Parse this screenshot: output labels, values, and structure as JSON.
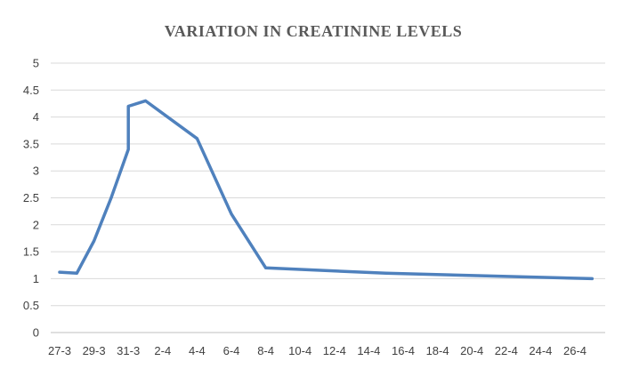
{
  "chart_data": {
    "type": "line",
    "title": "VARIATION IN CREATININE LEVELS",
    "xlabel": "",
    "ylabel": "",
    "ylim": [
      0,
      5
    ],
    "yticks": [
      "0",
      "0.5",
      "1",
      "1.5",
      "2",
      "2.5",
      "3",
      "3.5",
      "4",
      "4.5",
      "5"
    ],
    "xticks": [
      "27-3",
      "29-3",
      "31-3",
      "2-4",
      "4-4",
      "6-4",
      "8-4",
      "10-4",
      "12-4",
      "14-4",
      "16-4",
      "18-4",
      "20-4",
      "22-4",
      "24-4",
      "26-4"
    ],
    "grid": true,
    "legend": "none",
    "color": "#4f81bd",
    "series": [
      {
        "points": [
          {
            "x": "27-3",
            "y": 1.12
          },
          {
            "x": "28-3",
            "y": 1.1
          },
          {
            "x": "29-3",
            "y": 1.7
          },
          {
            "x": "30-3",
            "y": 2.5
          },
          {
            "x": "31-3",
            "y": 3.4
          },
          {
            "x": "31-3",
            "y": 4.2
          },
          {
            "x": "1-4",
            "y": 4.3
          },
          {
            "x": "4-4",
            "y": 3.6
          },
          {
            "x": "6-4",
            "y": 2.2
          },
          {
            "x": "8-4",
            "y": 1.2
          },
          {
            "x": "15-4",
            "y": 1.1
          },
          {
            "x": "27-4",
            "y": 1.0
          }
        ]
      }
    ]
  }
}
